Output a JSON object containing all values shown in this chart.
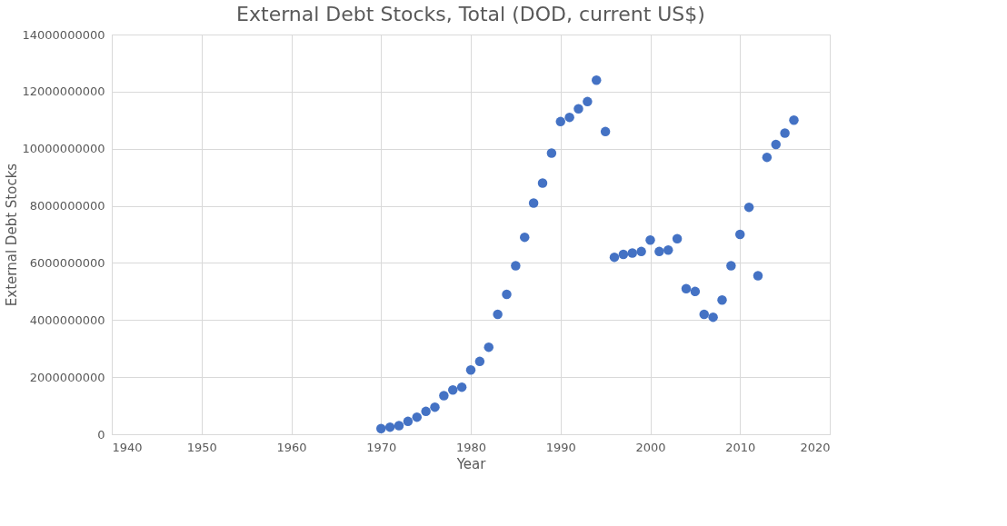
{
  "chart_data": {
    "type": "scatter",
    "title": "External Debt Stocks, Total (DOD, current US$)",
    "xlabel": "Year",
    "ylabel": "External Debt Stocks",
    "x": [
      1970,
      1971,
      1972,
      1973,
      1974,
      1975,
      1976,
      1977,
      1978,
      1979,
      1980,
      1981,
      1982,
      1983,
      1984,
      1985,
      1986,
      1987,
      1988,
      1989,
      1990,
      1991,
      1992,
      1993,
      1994,
      1995,
      1996,
      1997,
      1998,
      1999,
      2000,
      2001,
      2002,
      2003,
      2004,
      2005,
      2006,
      2007,
      2008,
      2009,
      2010,
      2011,
      2012,
      2013,
      2014,
      2015,
      2016
    ],
    "series": [
      {
        "color": "#4472c4",
        "values": [
          200000000,
          250000000,
          300000000,
          450000000,
          600000000,
          800000000,
          950000000,
          1350000000,
          1550000000,
          1650000000,
          2250000000,
          2550000000,
          3050000000,
          4200000000,
          4900000000,
          5900000000,
          6900000000,
          8100000000,
          8800000000,
          9850000000,
          10950000000,
          11100000000,
          11400000000,
          11650000000,
          12400000000,
          10600000000,
          6200000000,
          6300000000,
          6350000000,
          6400000000,
          6800000000,
          6400000000,
          6450000000,
          6850000000,
          5100000000,
          5000000000,
          4200000000,
          4100000000,
          4700000000,
          5900000000,
          7000000000,
          7950000000,
          5550000000,
          9700000000,
          10150000000,
          10550000000,
          11000000000
        ]
      }
    ],
    "xlim": [
      1940,
      2020
    ],
    "xticks": [
      1940,
      1950,
      1960,
      1970,
      1980,
      1990,
      2000,
      2010,
      2020
    ],
    "ylim": [
      0,
      14000000000
    ],
    "yticks": [
      0,
      2000000000,
      4000000000,
      6000000000,
      8000000000,
      10000000000,
      12000000000,
      14000000000
    ],
    "grid": true,
    "marker": "circle"
  }
}
